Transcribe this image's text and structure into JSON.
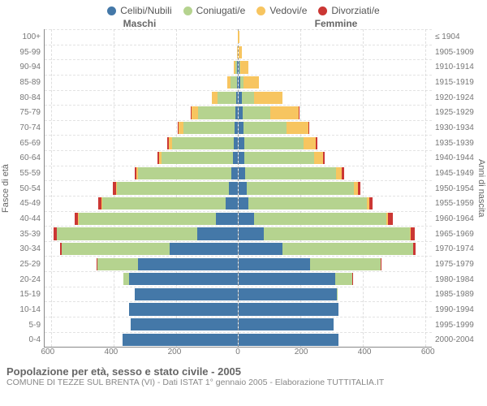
{
  "legend": [
    {
      "label": "Celibi/Nubili",
      "color": "#4478a8"
    },
    {
      "label": "Coniugati/e",
      "color": "#b5d38f"
    },
    {
      "label": "Vedovi/e",
      "color": "#f7c560"
    },
    {
      "label": "Divorziati/e",
      "color": "#cb3734"
    }
  ],
  "header_male": "Maschi",
  "header_female": "Femmine",
  "ylabel_left": "Fasce di età",
  "ylabel_right": "Anni di nascita",
  "title": "Popolazione per età, sesso e stato civile - 2005",
  "subtitle": "COMUNE DI TEZZE SUL BRENTA (VI) - Dati ISTAT 1° gennaio 2005 - Elaborazione TUTTITALIA.IT",
  "xmax": 620,
  "xticks": [
    600,
    400,
    200,
    0,
    200,
    400,
    600
  ],
  "bar_border": "#ffffff",
  "colors": {
    "single": "#4478a8",
    "married": "#b5d38f",
    "widowed": "#f7c560",
    "divorced": "#cb3734"
  },
  "rows": [
    {
      "age": "100+",
      "birth": "≤ 1904",
      "m": {
        "s": 0,
        "m": 0,
        "w": 1,
        "d": 0
      },
      "f": {
        "s": 0,
        "m": 0,
        "w": 3,
        "d": 0
      }
    },
    {
      "age": "95-99",
      "birth": "1905-1909",
      "m": {
        "s": 0,
        "m": 0,
        "w": 2,
        "d": 0
      },
      "f": {
        "s": 0,
        "m": 0,
        "w": 10,
        "d": 0
      }
    },
    {
      "age": "90-94",
      "birth": "1910-1914",
      "m": {
        "s": 2,
        "m": 5,
        "w": 5,
        "d": 0
      },
      "f": {
        "s": 2,
        "m": 4,
        "w": 25,
        "d": 0
      }
    },
    {
      "age": "85-89",
      "birth": "1915-1919",
      "m": {
        "s": 3,
        "m": 20,
        "w": 10,
        "d": 0
      },
      "f": {
        "s": 5,
        "m": 10,
        "w": 50,
        "d": 0
      }
    },
    {
      "age": "80-84",
      "birth": "1920-1924",
      "m": {
        "s": 5,
        "m": 60,
        "w": 18,
        "d": 0
      },
      "f": {
        "s": 10,
        "m": 40,
        "w": 90,
        "d": 0
      }
    },
    {
      "age": "75-79",
      "birth": "1925-1929",
      "m": {
        "s": 8,
        "m": 120,
        "w": 20,
        "d": 2
      },
      "f": {
        "s": 12,
        "m": 90,
        "w": 90,
        "d": 2
      }
    },
    {
      "age": "70-74",
      "birth": "1930-1934",
      "m": {
        "s": 10,
        "m": 165,
        "w": 15,
        "d": 3
      },
      "f": {
        "s": 15,
        "m": 140,
        "w": 70,
        "d": 3
      }
    },
    {
      "age": "65-69",
      "birth": "1935-1939",
      "m": {
        "s": 12,
        "m": 200,
        "w": 10,
        "d": 4
      },
      "f": {
        "s": 18,
        "m": 190,
        "w": 40,
        "d": 4
      }
    },
    {
      "age": "60-64",
      "birth": "1940-1944",
      "m": {
        "s": 15,
        "m": 230,
        "w": 8,
        "d": 5
      },
      "f": {
        "s": 18,
        "m": 225,
        "w": 28,
        "d": 5
      }
    },
    {
      "age": "55-59",
      "birth": "1945-1949",
      "m": {
        "s": 20,
        "m": 300,
        "w": 5,
        "d": 6
      },
      "f": {
        "s": 22,
        "m": 290,
        "w": 20,
        "d": 6
      }
    },
    {
      "age": "50-54",
      "birth": "1950-1954",
      "m": {
        "s": 28,
        "m": 360,
        "w": 4,
        "d": 8
      },
      "f": {
        "s": 25,
        "m": 345,
        "w": 12,
        "d": 8
      }
    },
    {
      "age": "45-49",
      "birth": "1955-1959",
      "m": {
        "s": 40,
        "m": 395,
        "w": 3,
        "d": 9
      },
      "f": {
        "s": 32,
        "m": 380,
        "w": 8,
        "d": 9
      }
    },
    {
      "age": "40-44",
      "birth": "1960-1964",
      "m": {
        "s": 70,
        "m": 440,
        "w": 2,
        "d": 12
      },
      "f": {
        "s": 50,
        "m": 425,
        "w": 5,
        "d": 14
      }
    },
    {
      "age": "35-39",
      "birth": "1965-1969",
      "m": {
        "s": 130,
        "m": 450,
        "w": 1,
        "d": 10
      },
      "f": {
        "s": 80,
        "m": 470,
        "w": 3,
        "d": 12
      }
    },
    {
      "age": "30-34",
      "birth": "1970-1974",
      "m": {
        "s": 220,
        "m": 345,
        "w": 0,
        "d": 6
      },
      "f": {
        "s": 140,
        "m": 420,
        "w": 1,
        "d": 8
      }
    },
    {
      "age": "25-29",
      "birth": "1975-1979",
      "m": {
        "s": 320,
        "m": 130,
        "w": 0,
        "d": 3
      },
      "f": {
        "s": 230,
        "m": 225,
        "w": 0,
        "d": 4
      }
    },
    {
      "age": "20-24",
      "birth": "1980-1984",
      "m": {
        "s": 350,
        "m": 18,
        "w": 0,
        "d": 0
      },
      "f": {
        "s": 310,
        "m": 55,
        "w": 0,
        "d": 1
      }
    },
    {
      "age": "15-19",
      "birth": "1985-1989",
      "m": {
        "s": 330,
        "m": 0,
        "w": 0,
        "d": 0
      },
      "f": {
        "s": 315,
        "m": 2,
        "w": 0,
        "d": 0
      }
    },
    {
      "age": "10-14",
      "birth": "1990-1994",
      "m": {
        "s": 350,
        "m": 0,
        "w": 0,
        "d": 0
      },
      "f": {
        "s": 320,
        "m": 0,
        "w": 0,
        "d": 0
      }
    },
    {
      "age": "5-9",
      "birth": "1995-1999",
      "m": {
        "s": 345,
        "m": 0,
        "w": 0,
        "d": 0
      },
      "f": {
        "s": 305,
        "m": 0,
        "w": 0,
        "d": 0
      }
    },
    {
      "age": "0-4",
      "birth": "2000-2004",
      "m": {
        "s": 370,
        "m": 0,
        "w": 0,
        "d": 0
      },
      "f": {
        "s": 320,
        "m": 0,
        "w": 0,
        "d": 0
      }
    }
  ]
}
